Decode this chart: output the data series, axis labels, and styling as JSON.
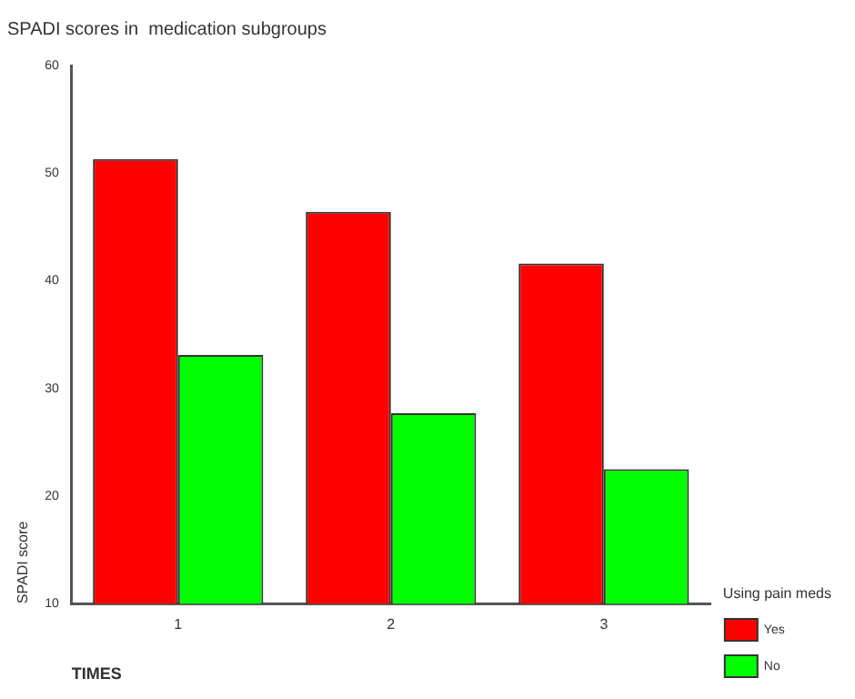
{
  "chart_data": {
    "type": "bar",
    "title": "SPADI scores in  medication subgroups",
    "xlabel": "TIMES",
    "ylabel": "SPADI score",
    "legend_title": "Using pain meds",
    "categories": [
      "1",
      "2",
      "3"
    ],
    "series": [
      {
        "name": "Yes",
        "color": "#ff0000",
        "values": [
          51.3,
          46.4,
          41.6
        ]
      },
      {
        "name": "No",
        "color": "#00ff00",
        "values": [
          33.1,
          27.7,
          22.5
        ]
      }
    ],
    "ylim": [
      10,
      60
    ],
    "yticks": [
      10,
      20,
      30,
      40,
      50,
      60
    ],
    "grid": false,
    "legend": "right"
  }
}
